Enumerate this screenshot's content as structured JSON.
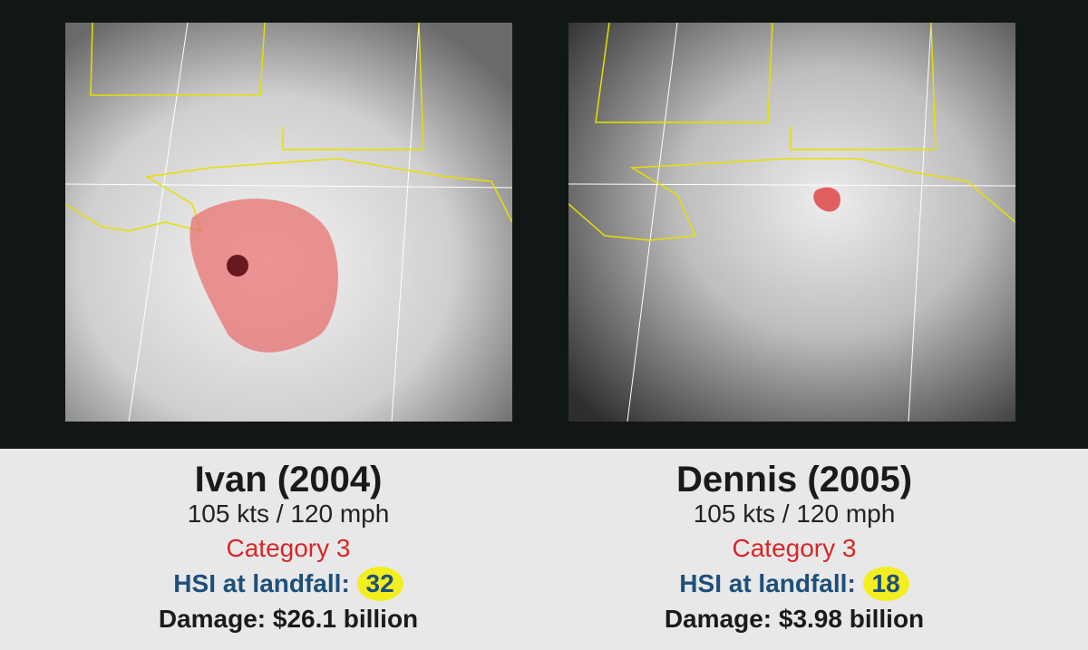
{
  "panels": [
    {
      "title": "Ivan (2004)",
      "wind": "105 kts / 120 mph",
      "category": "Category 3",
      "hsi_label": "HSI at landfall:",
      "hsi_value": "32",
      "damage_label": "Damage:",
      "damage_value": "$26.1 billion"
    },
    {
      "title": "Dennis (2005)",
      "wind": "105 kts / 120 mph",
      "category": "Category 3",
      "hsi_label": "HSI at landfall:",
      "hsi_value": "18",
      "damage_label": "Damage:",
      "damage_value": "$3.98 billion"
    }
  ]
}
